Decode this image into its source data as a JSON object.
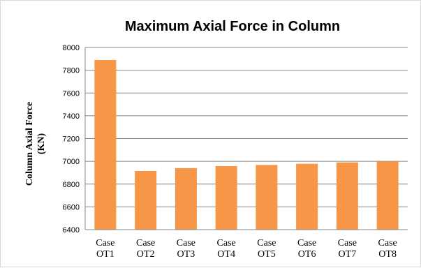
{
  "chart_data": {
    "type": "bar",
    "title": "Maximum Axial Force in Column",
    "ylabel_lines": [
      "Column Axial Force",
      "(KN)"
    ],
    "xlabel": "",
    "categories": [
      [
        "Case",
        "OT1"
      ],
      [
        "Case",
        "OT2"
      ],
      [
        "Case",
        "OT3"
      ],
      [
        "Case",
        "OT4"
      ],
      [
        "Case",
        "OT5"
      ],
      [
        "Case",
        "OT6"
      ],
      [
        "Case",
        "OT7"
      ],
      [
        "Case",
        "OT8"
      ]
    ],
    "values": [
      7890,
      6915,
      6940,
      6958,
      6968,
      6978,
      6990,
      7000
    ],
    "ylim": [
      6400,
      8000
    ],
    "yticks": [
      6400,
      6600,
      6800,
      7000,
      7200,
      7400,
      7600,
      7800,
      8000
    ],
    "grid": true,
    "legend": "none",
    "colors": {
      "bar": "#F79646",
      "grid": "#868686",
      "axis": "#868686",
      "border": "#d9d9d9"
    }
  }
}
